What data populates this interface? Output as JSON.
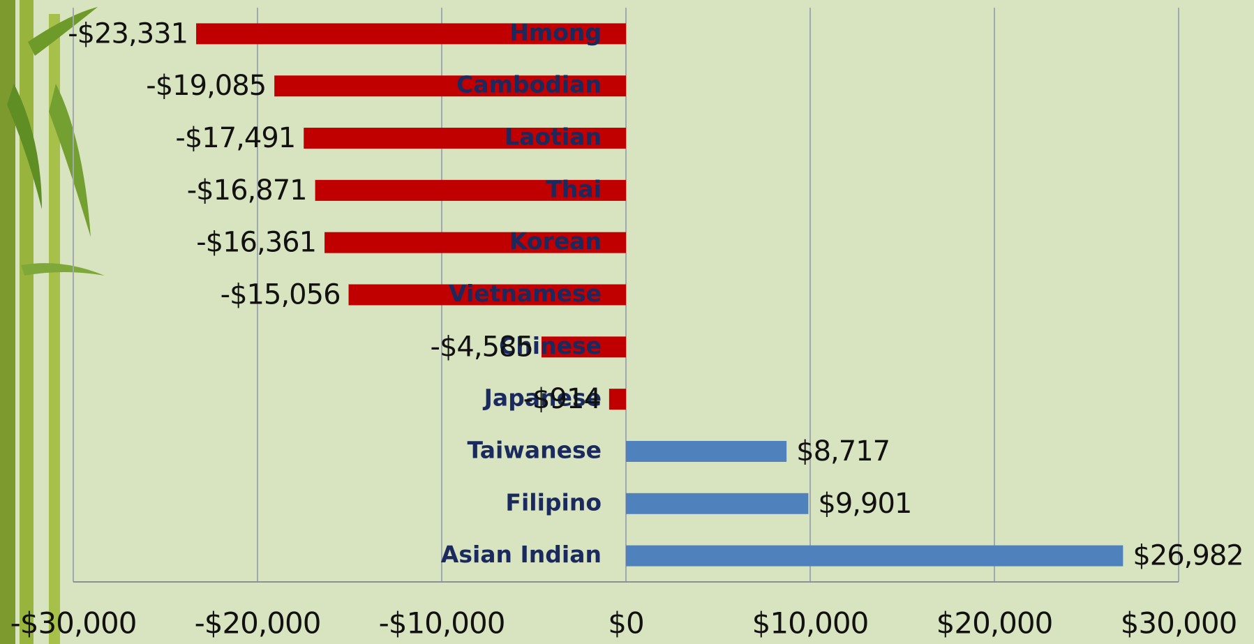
{
  "chart_data": {
    "type": "bar",
    "orientation": "horizontal",
    "categories": [
      "Hmong",
      "Cambodian",
      "Laotian",
      "Thai",
      "Korean",
      "Vietnamese",
      "Chinese",
      "Japanese",
      "Taiwanese",
      "Filipino",
      "Asian Indian"
    ],
    "values": [
      -23331,
      -19085,
      -17491,
      -16871,
      -16361,
      -15056,
      -4585,
      -914,
      8717,
      9901,
      26982
    ],
    "value_labels": [
      "-$23,331",
      "-$19,085",
      "-$17,491",
      "-$16,871",
      "-$16,361",
      "-$15,056",
      "-$4,585",
      "-$914",
      "$8,717",
      "$9,901",
      "$26,982"
    ],
    "colors": [
      "#c00000",
      "#c00000",
      "#c00000",
      "#c00000",
      "#c00000",
      "#c00000",
      "#c00000",
      "#c00000",
      "#4f81bd",
      "#4f81bd",
      "#4f81bd"
    ],
    "xlim": [
      -30000,
      30000
    ],
    "xticks": [
      {
        "value": -30000,
        "label": "-$30,000"
      },
      {
        "value": -20000,
        "label": "-$20,000"
      },
      {
        "value": -10000,
        "label": "-$10,000"
      },
      {
        "value": 0,
        "label": "$0"
      },
      {
        "value": 10000,
        "label": "$10,000"
      },
      {
        "value": 20000,
        "label": "$20,000"
      },
      {
        "value": 30000,
        "label": "$30,000"
      }
    ],
    "grid": true
  }
}
